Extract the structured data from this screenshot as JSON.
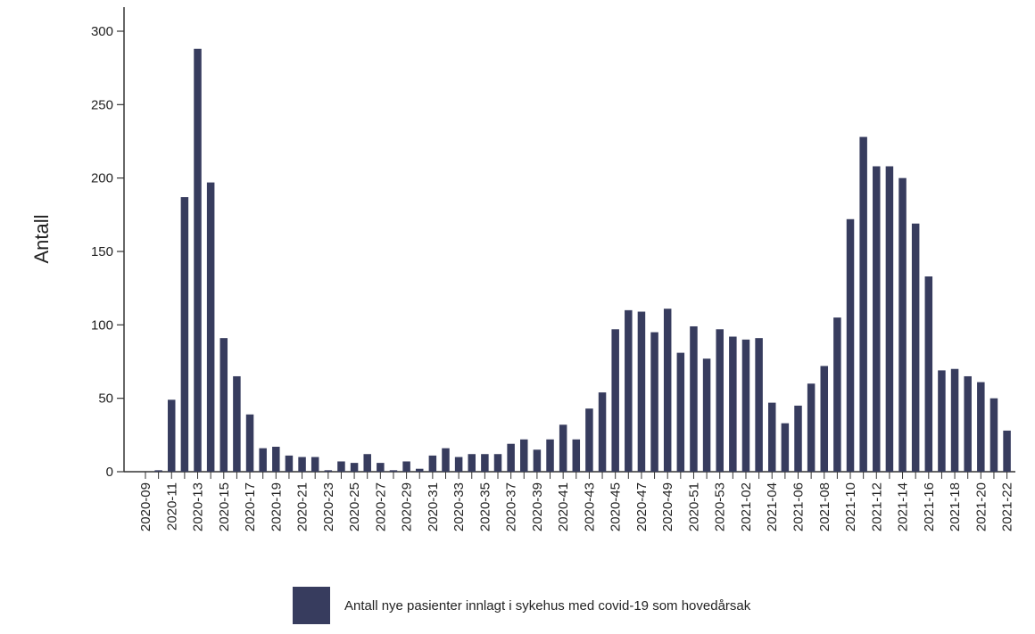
{
  "chart_data": {
    "type": "bar",
    "ylabel": "Antall",
    "ylim": [
      0,
      320
    ],
    "yticks": [
      0,
      50,
      100,
      150,
      200,
      250,
      300
    ],
    "bar_color": "#373c5e",
    "legend_position": "bottom",
    "grid": false,
    "categories": [
      "2020-09",
      "2020-10",
      "2020-11",
      "2020-12",
      "2020-13",
      "2020-14",
      "2020-15",
      "2020-16",
      "2020-17",
      "2020-18",
      "2020-19",
      "2020-20",
      "2020-21",
      "2020-22",
      "2020-23",
      "2020-24",
      "2020-25",
      "2020-26",
      "2020-27",
      "2020-28",
      "2020-29",
      "2020-30",
      "2020-31",
      "2020-32",
      "2020-33",
      "2020-34",
      "2020-35",
      "2020-36",
      "2020-37",
      "2020-38",
      "2020-39",
      "2020-40",
      "2020-41",
      "2020-42",
      "2020-43",
      "2020-44",
      "2020-45",
      "2020-46",
      "2020-47",
      "2020-48",
      "2020-49",
      "2020-50",
      "2020-51",
      "2020-52",
      "2020-53",
      "2021-01",
      "2021-02",
      "2021-03",
      "2021-04",
      "2021-05",
      "2021-06",
      "2021-07",
      "2021-08",
      "2021-09",
      "2021-10",
      "2021-11",
      "2021-12",
      "2021-13",
      "2021-14",
      "2021-15",
      "2021-16",
      "2021-17",
      "2021-18",
      "2021-19",
      "2021-20",
      "2021-21",
      "2021-22"
    ],
    "xtick_labels": [
      "2020-09",
      "2020-11",
      "2020-13",
      "2020-15",
      "2020-17",
      "2020-19",
      "2020-21",
      "2020-23",
      "2020-25",
      "2020-27",
      "2020-29",
      "2020-31",
      "2020-33",
      "2020-35",
      "2020-37",
      "2020-39",
      "2020-41",
      "2020-43",
      "2020-45",
      "2020-47",
      "2020-49",
      "2020-51",
      "2020-53",
      "2021-02",
      "2021-04",
      "2021-06",
      "2021-08",
      "2021-10",
      "2021-12",
      "2021-14",
      "2021-16",
      "2021-18",
      "2021-20",
      "2021-22"
    ],
    "series": [
      {
        "name": "Antall nye pasienter innlagt i sykehus med covid-19 som hovedårsak",
        "values": [
          0,
          1,
          49,
          187,
          288,
          197,
          91,
          65,
          39,
          16,
          17,
          11,
          10,
          10,
          1,
          7,
          6,
          12,
          6,
          1,
          7,
          2,
          11,
          16,
          10,
          12,
          12,
          12,
          19,
          22,
          15,
          22,
          32,
          22,
          43,
          54,
          97,
          110,
          109,
          95,
          111,
          81,
          99,
          77,
          97,
          92,
          90,
          91,
          47,
          33,
          45,
          60,
          72,
          105,
          172,
          228,
          208,
          208,
          200,
          169,
          133,
          69,
          70,
          65,
          61,
          50,
          28
        ]
      }
    ]
  }
}
